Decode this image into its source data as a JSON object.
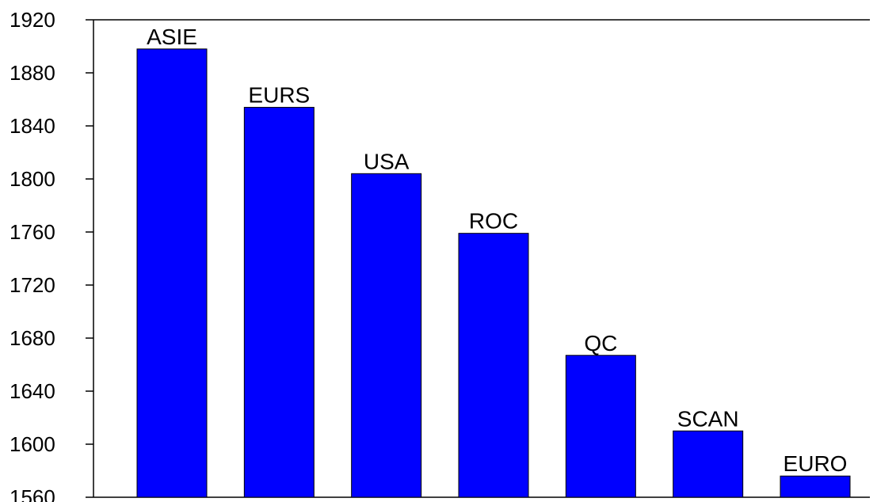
{
  "chart_data": {
    "type": "bar",
    "categories": [
      "ASIE",
      "EURS",
      "USA",
      "ROC",
      "QC",
      "SCAN",
      "EURO"
    ],
    "values": [
      1898,
      1854,
      1804,
      1759,
      1667,
      1610,
      1576
    ],
    "title": "",
    "xlabel": "",
    "ylabel": "",
    "ylim": [
      1560,
      1920
    ],
    "yticks": [
      1560,
      1600,
      1640,
      1680,
      1720,
      1760,
      1800,
      1840,
      1880,
      1920
    ],
    "ytick_labels": [
      "1560",
      "1600",
      "1640",
      "1680",
      "1720",
      "1760",
      "1800",
      "1840",
      "1880",
      "1920"
    ],
    "grid": false,
    "legend": "none",
    "bar_color": "#0000FF",
    "bar_edge_color": "#000000",
    "data_labels": "category names above bars"
  }
}
